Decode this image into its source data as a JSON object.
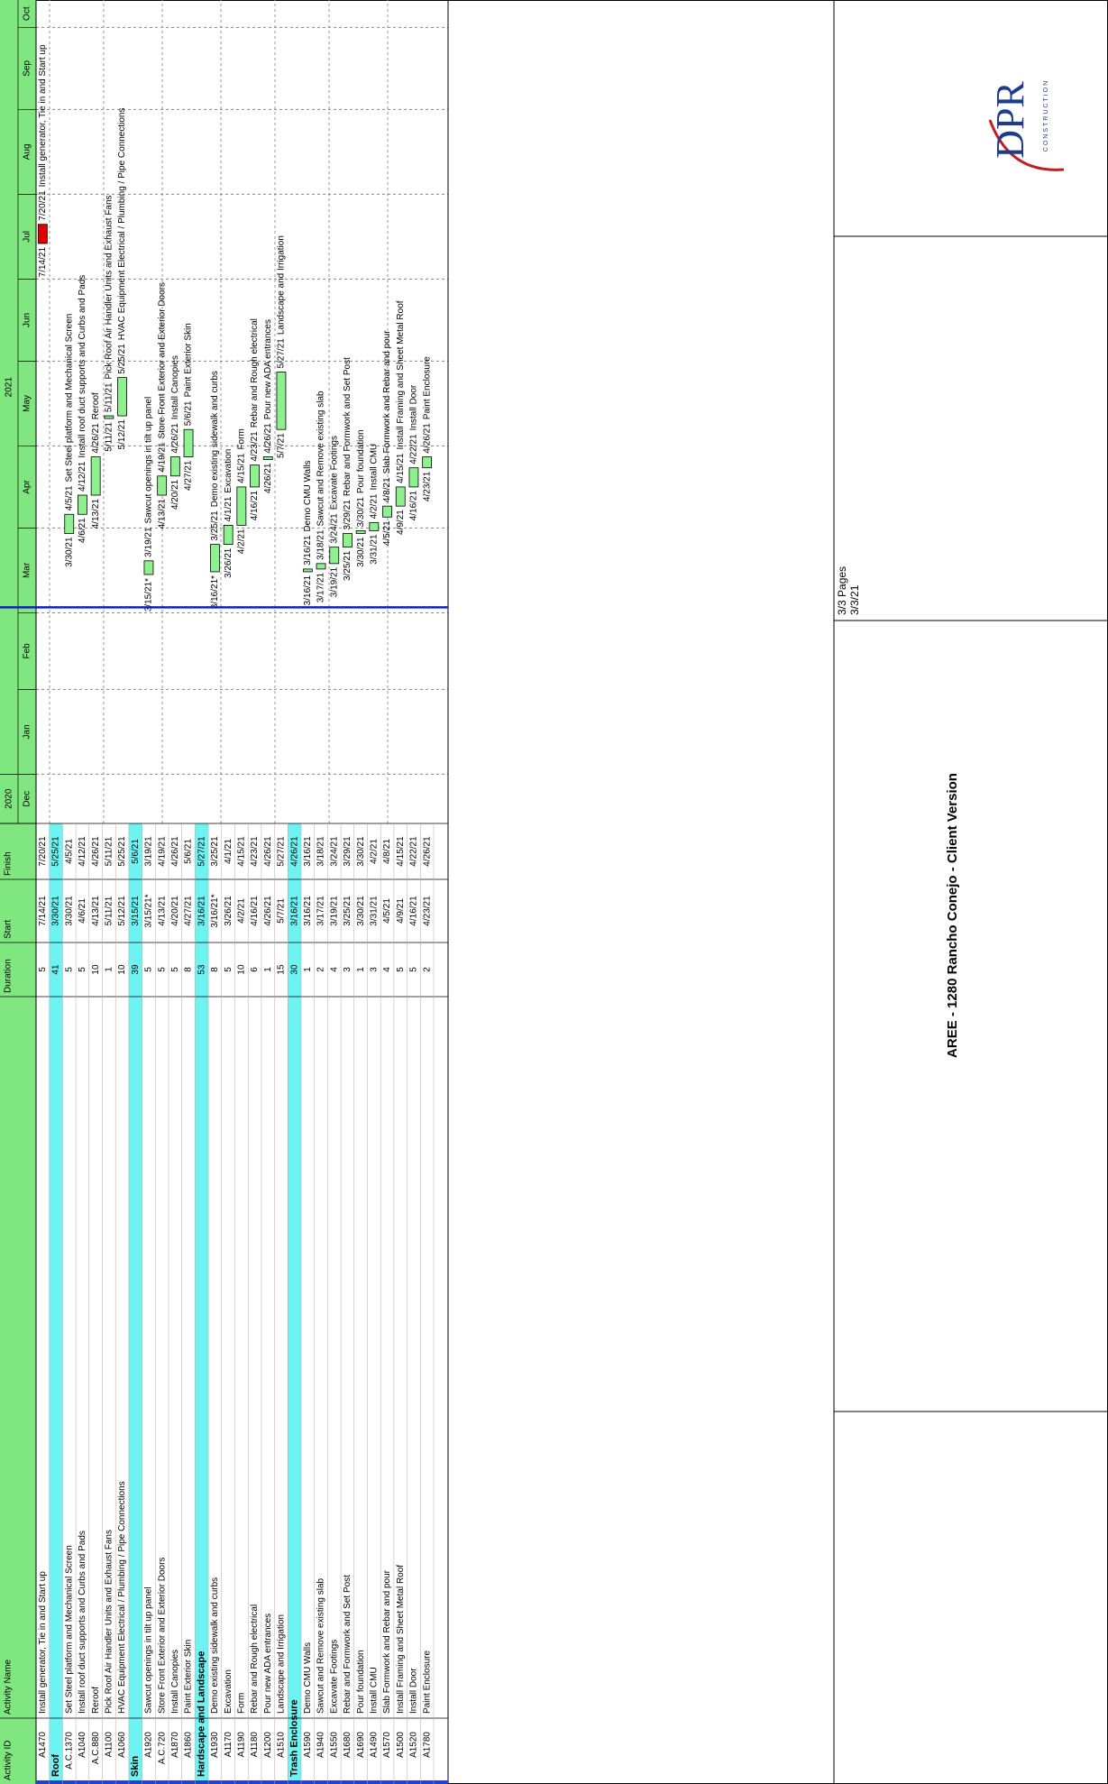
{
  "chart_data": {
    "type": "gantt",
    "columns": [
      "Activity ID",
      "Activity Name",
      "Duration",
      "Start",
      "Finish"
    ],
    "years": [
      "2020",
      "2021"
    ],
    "months": [
      "Dec",
      "Jan",
      "Feb",
      "Mar",
      "Apr",
      "May",
      "Jun",
      "Jul",
      "Aug",
      "Sep",
      "Oct"
    ],
    "xlim": [
      "12/14/20",
      "10/10/21"
    ],
    "rows": [
      {
        "id": "A1470",
        "name": "Install generator, Tie in and Start up",
        "duration": 5,
        "start": "7/14/21",
        "finish": "7/20/21",
        "color": "#e00000"
      },
      {
        "name": "Roof",
        "duration": 41,
        "start": "3/30/21",
        "finish": "5/25/21"
      },
      {
        "id": "A.C.1370",
        "name": "Set Steel platform and Mechanical Screen",
        "duration": 5,
        "start": "3/30/21",
        "finish": "4/5/21",
        "color": "#8ff08f"
      },
      {
        "id": "A1040",
        "name": "Install roof duct supports and Curbs and Pads",
        "duration": 5,
        "start": "4/6/21",
        "finish": "4/12/21",
        "color": "#8ff08f"
      },
      {
        "id": "A.C.880",
        "name": "Reroof",
        "duration": 10,
        "start": "4/13/21",
        "finish": "4/26/21",
        "color": "#8ff08f"
      },
      {
        "id": "A1100",
        "name": "Pick Roof Air Handler Units and Exhaust Fans",
        "duration": 1,
        "start": "5/11/21",
        "finish": "5/11/21",
        "color": "#8ff08f"
      },
      {
        "id": "A1060",
        "name": "HVAC Equipment Electrical / Plumbing / Pipe Connections",
        "duration": 10,
        "start": "5/12/21",
        "finish": "5/25/21",
        "color": "#8ff08f"
      },
      {
        "name": "Skin",
        "duration": 39,
        "start": "3/15/21",
        "finish": "5/6/21"
      },
      {
        "id": "A1920",
        "name": "Sawcut openings in tilt up panel",
        "duration": 5,
        "start": "3/15/21*",
        "finish": "3/19/21",
        "color": "#8ff08f"
      },
      {
        "id": "A.C.720",
        "name": "Store Front Exterior and Exterior Doors",
        "duration": 5,
        "start": "4/13/21",
        "finish": "4/19/21",
        "color": "#8ff08f"
      },
      {
        "id": "A1870",
        "name": "Install Canopies",
        "duration": 5,
        "start": "4/20/21",
        "finish": "4/26/21",
        "color": "#8ff08f"
      },
      {
        "id": "A1860",
        "name": "Paint Exterior Skin",
        "duration": 8,
        "start": "4/27/21",
        "finish": "5/6/21",
        "color": "#8ff08f"
      },
      {
        "name": "Hardscape and Landscape",
        "duration": 53,
        "start": "3/16/21",
        "finish": "5/27/21"
      },
      {
        "id": "A1930",
        "name": "Demo existing sidewalk and curbs",
        "duration": 8,
        "start": "3/16/21*",
        "finish": "3/25/21",
        "color": "#8ff08f"
      },
      {
        "id": "A1170",
        "name": "Excavation",
        "duration": 5,
        "start": "3/26/21",
        "finish": "4/1/21",
        "color": "#8ff08f"
      },
      {
        "id": "A1190",
        "name": "Form",
        "duration": 10,
        "start": "4/2/21",
        "finish": "4/15/21",
        "color": "#8ff08f"
      },
      {
        "id": "A1180",
        "name": "Rebar and Rough electrical",
        "duration": 6,
        "start": "4/16/21",
        "finish": "4/23/21",
        "color": "#8ff08f"
      },
      {
        "id": "A1200",
        "name": "Pour new ADA entrances",
        "duration": 1,
        "start": "4/26/21",
        "finish": "4/26/21",
        "color": "#8ff08f"
      },
      {
        "id": "A1510",
        "name": "Landscape and Irrigation",
        "duration": 15,
        "start": "5/7/21",
        "finish": "5/27/21",
        "color": "#8ff08f"
      },
      {
        "name": "Trash Enclosure",
        "duration": 30,
        "start": "3/16/21",
        "finish": "4/26/21"
      },
      {
        "id": "A1590",
        "name": "Demo CMU Walls",
        "duration": 1,
        "start": "3/16/21",
        "finish": "3/16/21",
        "color": "#8ff08f"
      },
      {
        "id": "A1940",
        "name": "Sawcut and Remove existing slab",
        "duration": 2,
        "start": "3/17/21",
        "finish": "3/18/21",
        "color": "#8ff08f"
      },
      {
        "id": "A1550",
        "name": "Excavate Footings",
        "duration": 4,
        "start": "3/19/21",
        "finish": "3/24/21",
        "color": "#8ff08f"
      },
      {
        "id": "A1680",
        "name": "Rebar and Formwork and Set Post",
        "duration": 3,
        "start": "3/25/21",
        "finish": "3/29/21",
        "color": "#8ff08f"
      },
      {
        "id": "A1690",
        "name": "Pour foundation",
        "duration": 1,
        "start": "3/30/21",
        "finish": "3/30/21",
        "color": "#8ff08f"
      },
      {
        "id": "A1490",
        "name": "Install CMU",
        "duration": 3,
        "start": "3/31/21",
        "finish": "4/2/21",
        "color": "#8ff08f"
      },
      {
        "id": "A1570",
        "name": "Slab Formwork and Rebar and pour",
        "duration": 4,
        "start": "4/5/21",
        "finish": "4/8/21",
        "color": "#8ff08f"
      },
      {
        "id": "A1500",
        "name": "Install Framing and Sheet Metal Roof",
        "duration": 5,
        "start": "4/9/21",
        "finish": "4/15/21",
        "color": "#8ff08f"
      },
      {
        "id": "A1520",
        "name": "Install Door",
        "duration": 5,
        "start": "4/16/21",
        "finish": "4/22/21",
        "color": "#8ff08f"
      },
      {
        "id": "A1780",
        "name": "Paint Enclosure",
        "duration": 2,
        "start": "4/23/21",
        "finish": "4/26/21",
        "color": "#8ff08f"
      }
    ],
    "footer": {
      "title": "AREE - 1280 Rancho Conejo - Client Version",
      "pages": "3/3 Pages",
      "date": "3/3/21",
      "logo": "DPR",
      "logo_sub": "CONSTRUCTION"
    }
  }
}
